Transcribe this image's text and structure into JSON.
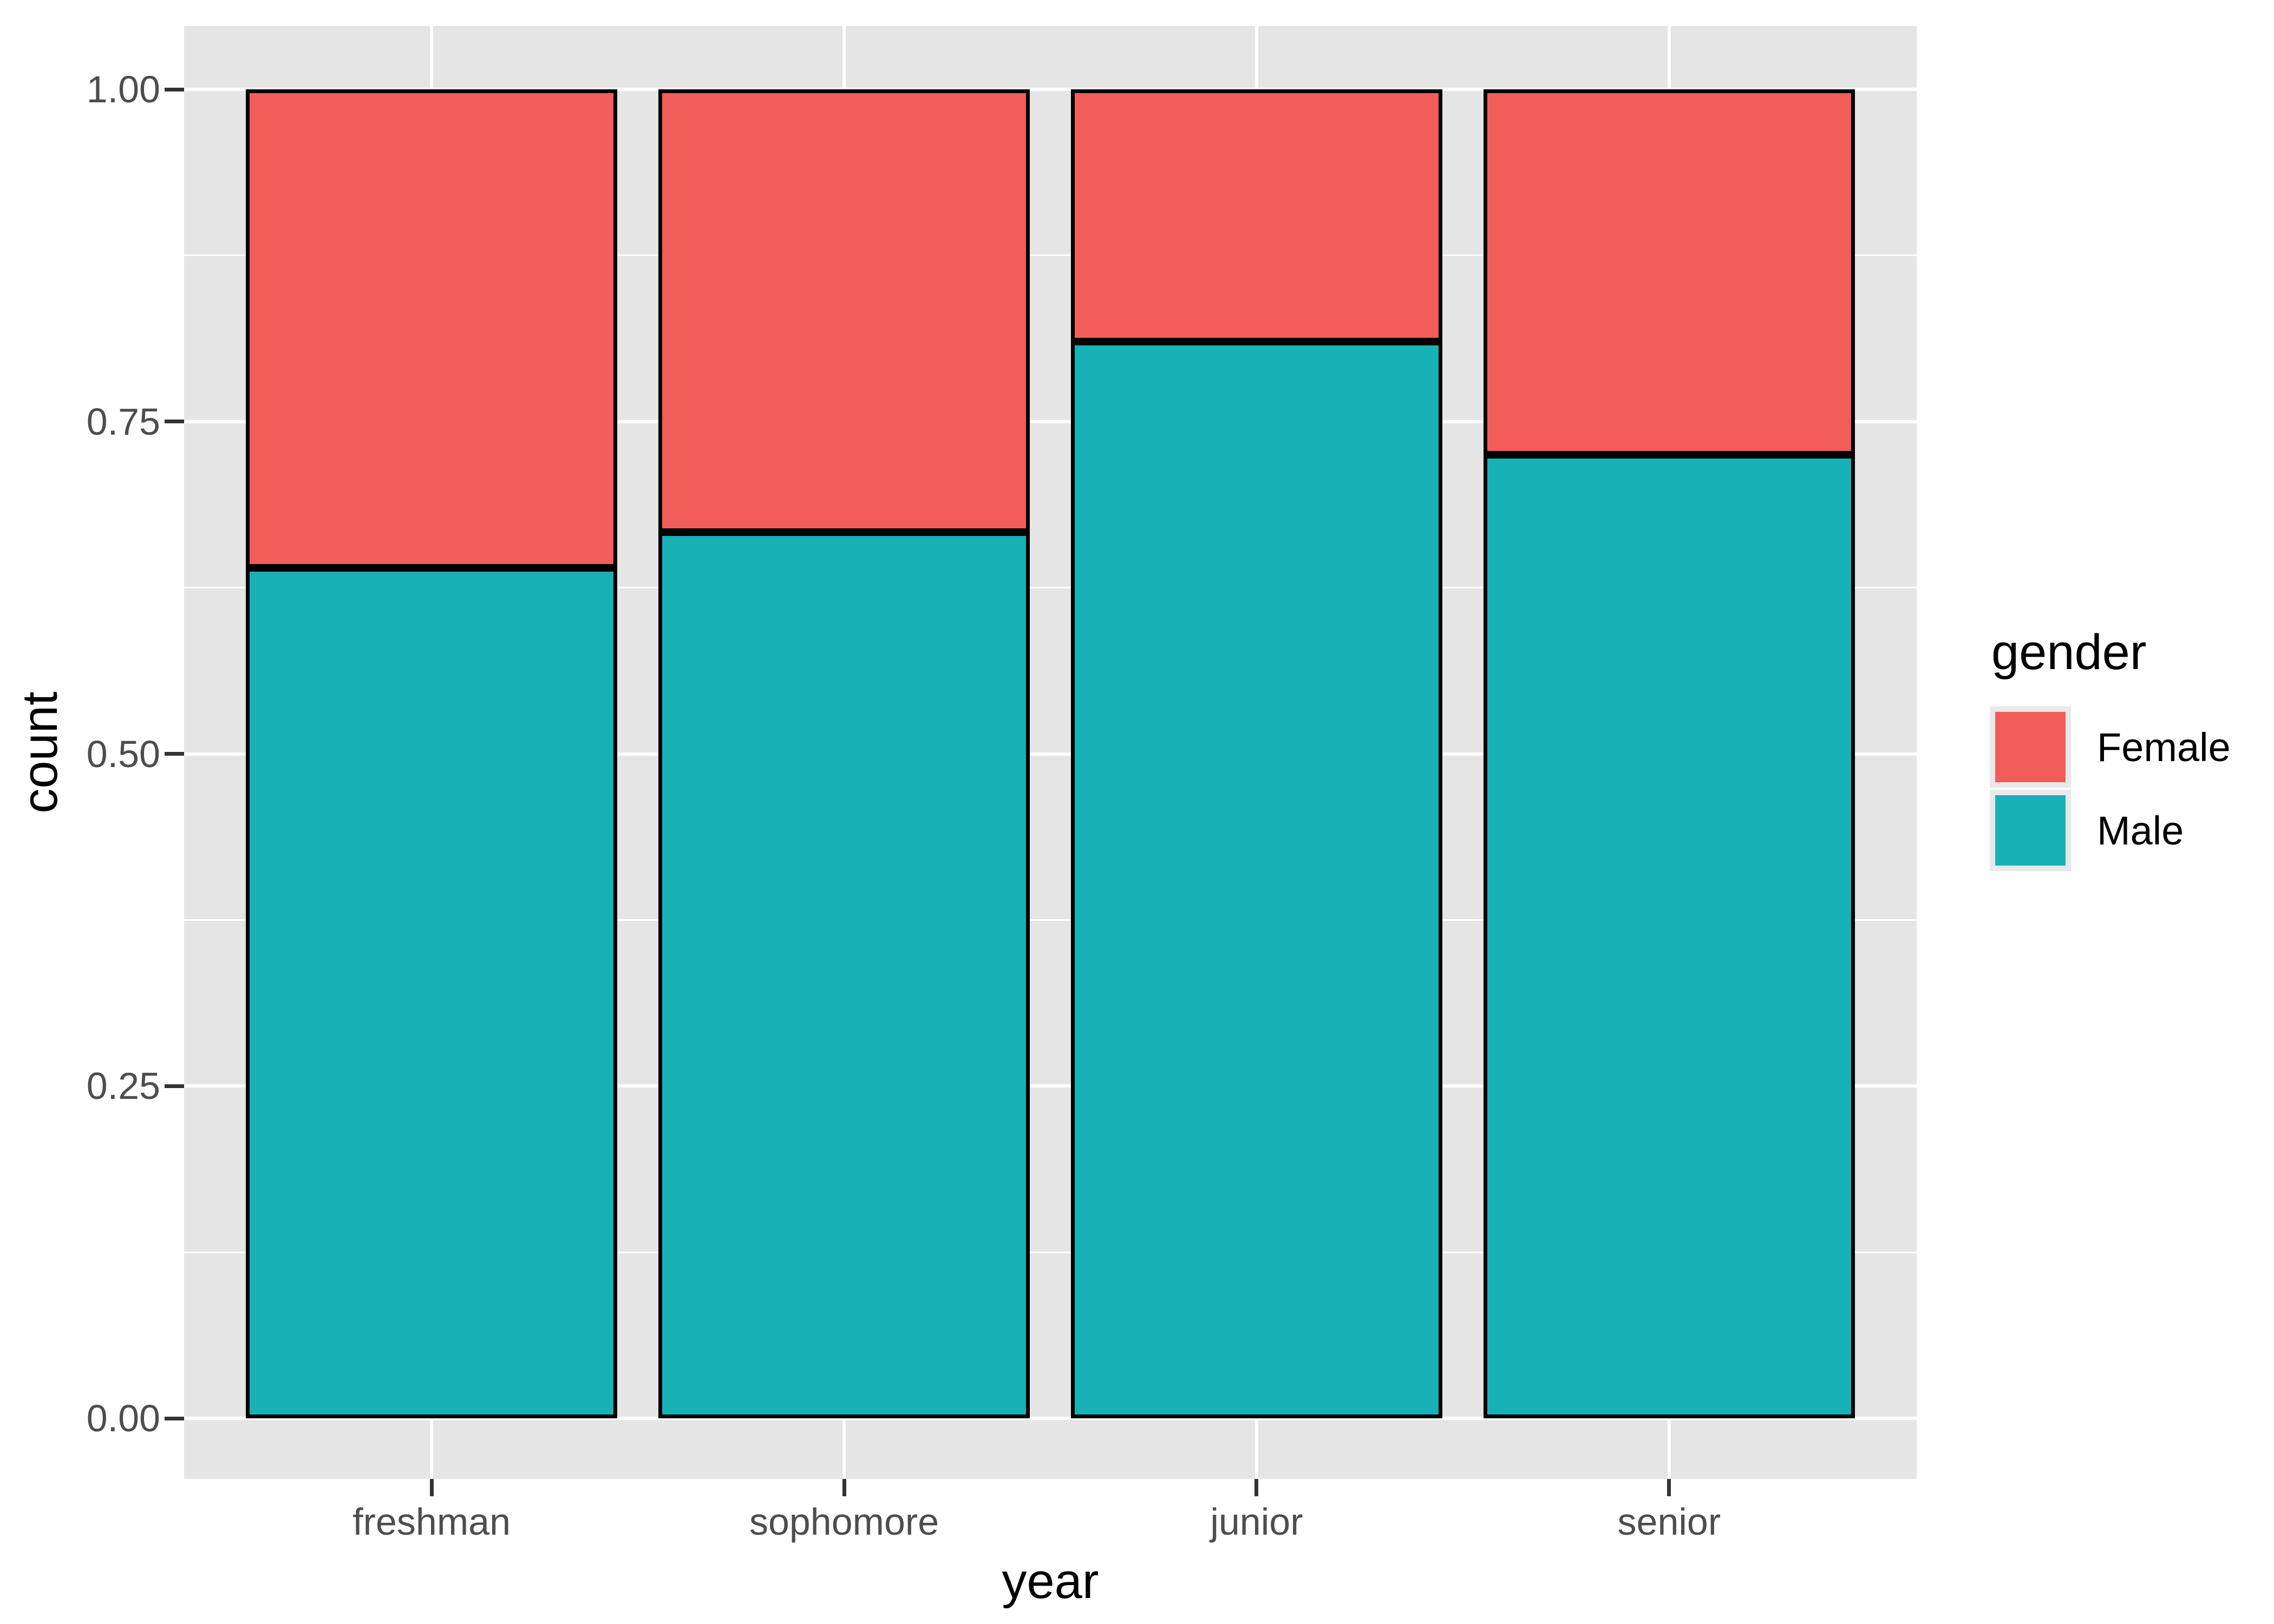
{
  "chart": {
    "x_axis_title": "year",
    "y_axis_title": "count"
  },
  "legend": {
    "title": "gender",
    "items": [
      {
        "label": "Female",
        "color": "#F25D59"
      },
      {
        "label": "Male",
        "color": "#18B1B5"
      }
    ]
  },
  "chart_data": {
    "type": "bar",
    "stacked": true,
    "normalized_fill": true,
    "title": "",
    "xlabel": "year",
    "ylabel": "count",
    "categories": [
      "freshman",
      "sophomore",
      "junior",
      "senior"
    ],
    "series": [
      {
        "name": "Male",
        "position": "bottom",
        "color": "#18B1B5",
        "values": [
          0.64,
          0.667,
          0.81,
          0.725
        ]
      },
      {
        "name": "Female",
        "position": "top",
        "color": "#F25D59",
        "values": [
          0.36,
          0.333,
          0.19,
          0.275
        ]
      }
    ],
    "ylim": [
      0,
      1
    ],
    "yticks": [
      {
        "v": 0.0,
        "label": "0.00"
      },
      {
        "v": 0.25,
        "label": "0.25"
      },
      {
        "v": 0.5,
        "label": "0.50"
      },
      {
        "v": 0.75,
        "label": "0.75"
      },
      {
        "v": 1.0,
        "label": "1.00"
      }
    ],
    "y_minor_gridlines": [
      0.125,
      0.375,
      0.625,
      0.875
    ],
    "legend_title": "gender",
    "legend_position": "right",
    "grid": true,
    "panel_background": "#E5E5E5",
    "gridline_color": "#FFFFFF",
    "bar_outline_color": "#000000",
    "tick_mark_color": "#333333",
    "axis_text_color": "#4D4D4D",
    "axis_title_color": "#000000"
  }
}
